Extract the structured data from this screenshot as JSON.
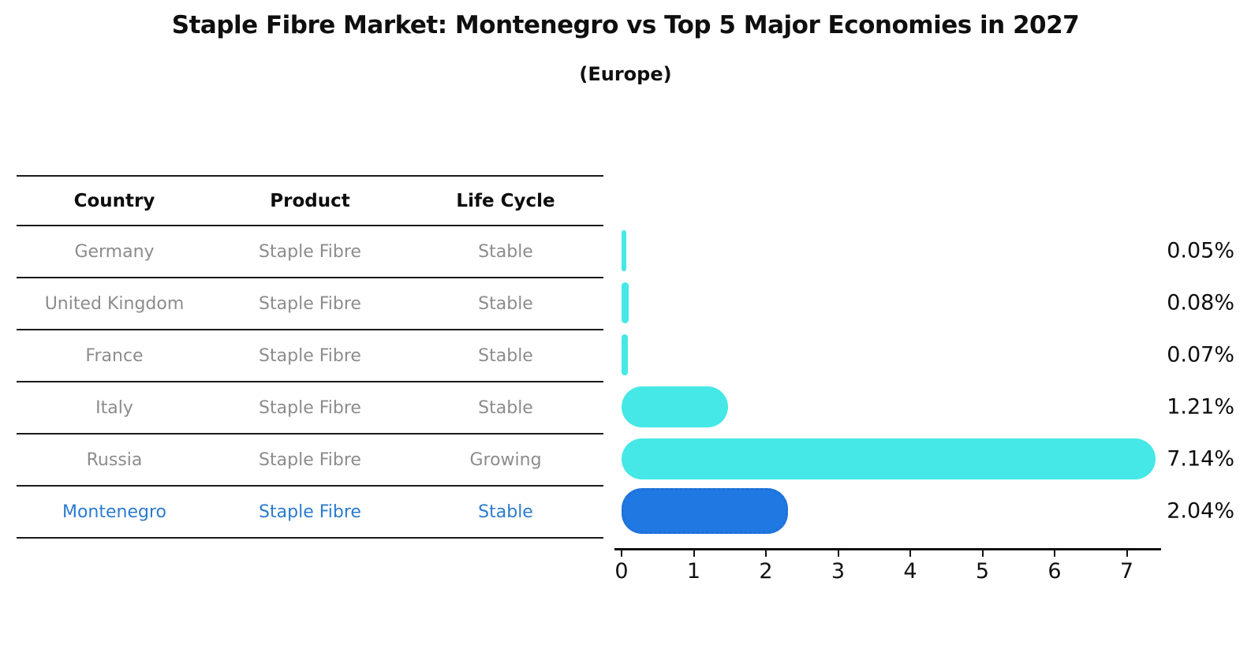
{
  "title": "Staple Fibre Market: Montenegro vs Top 5 Major Economies in 2027",
  "subtitle": "(Europe)",
  "table": {
    "headers": [
      "Country",
      "Product",
      "Life Cycle"
    ],
    "rows": [
      {
        "country": "Germany",
        "product": "Staple Fibre",
        "life_cycle": "Stable",
        "highlight": false
      },
      {
        "country": "United Kingdom",
        "product": "Staple Fibre",
        "life_cycle": "Stable",
        "highlight": false
      },
      {
        "country": "France",
        "product": "Staple Fibre",
        "life_cycle": "Stable",
        "highlight": false
      },
      {
        "country": "Italy",
        "product": "Staple Fibre",
        "life_cycle": "Stable",
        "highlight": false
      },
      {
        "country": "Russia",
        "product": "Staple Fibre",
        "life_cycle": "Growing",
        "highlight": false
      },
      {
        "country": "Montenegro",
        "product": "Staple Fibre",
        "life_cycle": "Stable",
        "highlight": true
      }
    ]
  },
  "chart_data": {
    "type": "bar",
    "orientation": "horizontal",
    "title": "Staple Fibre Market: Montenegro vs Top 5 Major Economies in 2027",
    "subtitle": "(Europe)",
    "categories": [
      "Germany",
      "United Kingdom",
      "France",
      "Italy",
      "Russia",
      "Montenegro"
    ],
    "values": [
      0.05,
      0.08,
      0.07,
      1.21,
      7.14,
      2.04
    ],
    "value_labels": [
      "0.05%",
      "0.08%",
      "0.07%",
      "1.21%",
      "7.14%",
      "2.04%"
    ],
    "x_ticks": [
      "0",
      "1",
      "2",
      "3",
      "4",
      "5",
      "6",
      "7"
    ],
    "xlim": [
      0,
      7.55
    ],
    "grid": false,
    "legend": "none",
    "highlight_index": 5,
    "colors": {
      "bar": "#45e8e6",
      "highlight_bar": "#2079e2",
      "highlight_border": "#1f6fd4",
      "highlight_text": "#2b7bce",
      "row_text": "#8c8c8c",
      "axis": "#111111"
    }
  }
}
